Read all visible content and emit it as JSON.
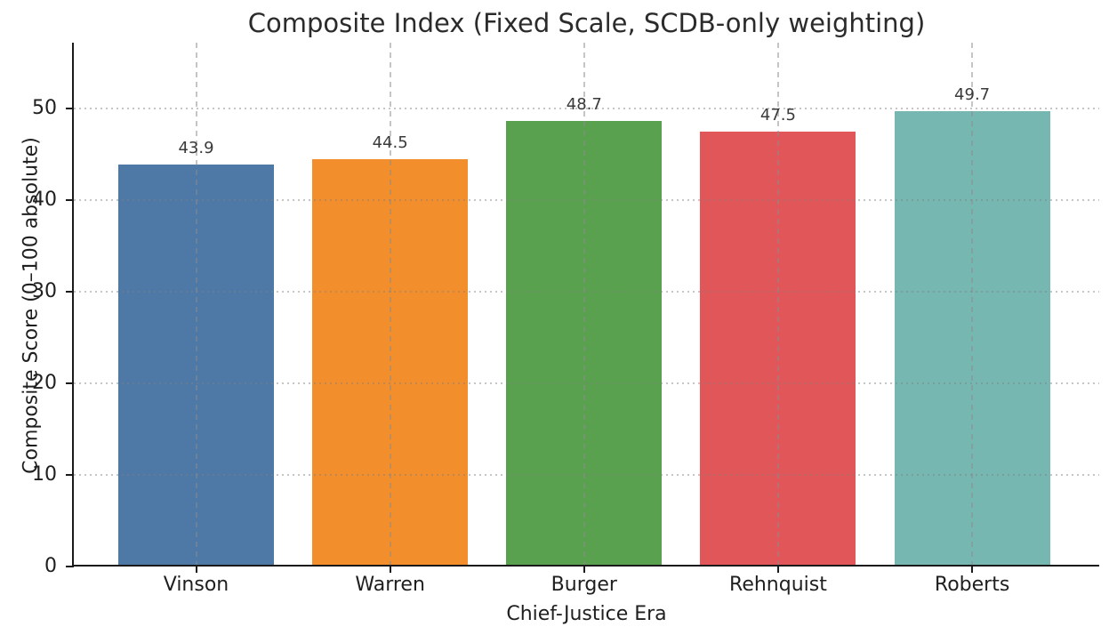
{
  "chart_data": {
    "type": "bar",
    "title": "Composite Index (Fixed Scale, SCDB-only weighting)",
    "xlabel": "Chief-Justice Era",
    "ylabel": "Composite Score (0–100 absolute)",
    "categories": [
      "Vinson",
      "Warren",
      "Burger",
      "Rehnquist",
      "Roberts"
    ],
    "values": [
      43.9,
      44.5,
      48.7,
      47.5,
      49.7
    ],
    "value_labels": [
      "43.9",
      "44.5",
      "48.7",
      "47.5",
      "49.7"
    ],
    "bar_colors": [
      "#4e79a7",
      "#f28e2b",
      "#59a14f",
      "#e15759",
      "#76b7b2"
    ],
    "ylim": [
      0,
      57.2
    ],
    "yticks": [
      0,
      10,
      20,
      30,
      40,
      50
    ],
    "grid": {
      "horizontal_style": "dotted",
      "vertical_style": "dashed",
      "color": "#c8c8c8",
      "drawn_above_bars": true
    },
    "background_color": "#ffffff",
    "text_color": "#1f1f1f",
    "legend": "none"
  }
}
